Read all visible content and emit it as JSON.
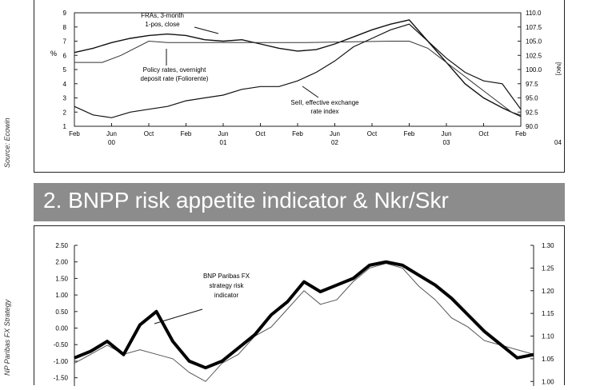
{
  "source_label": "Source: Ecowin",
  "source_label_2": "NP Paribas FX Strategy",
  "panel2_title": "2. BNPP risk appetite indicator & Nkr/Skr",
  "chart_data": [
    {
      "type": "line",
      "y_left_label": "%",
      "y_right_label": "[NKr]",
      "y_left_ticks": [
        "9",
        "8",
        "7",
        "6",
        "5",
        "4",
        "3",
        "2",
        "1"
      ],
      "y_right_ticks": [
        "110.0",
        "107.5",
        "105.0",
        "102.5",
        "100.0",
        "97.5",
        "95.0",
        "92.5",
        "90.0"
      ],
      "x_month_labels": [
        "Feb",
        "Jun",
        "Oct",
        "Feb",
        "Jun",
        "Oct",
        "Feb",
        "Jun",
        "Oct",
        "Feb",
        "Jun",
        "Oct",
        "Feb"
      ],
      "x_year_labels": [
        "00",
        "01",
        "02",
        "03",
        "04"
      ],
      "ylim_left": [
        1,
        9
      ],
      "ylim_right": [
        90,
        110
      ],
      "annotations": {
        "fra": [
          "FRAs, 3-month",
          "1-pos, close"
        ],
        "policy": [
          "Policy rates, overnight",
          "deposit rate (Foliorente)"
        ],
        "sek": [
          "SeII, effective exchange",
          "rate index"
        ]
      },
      "series": [
        {
          "name": "FRAs, 3-month 1-pos, close",
          "x": [
            0,
            2,
            4,
            6,
            8,
            10,
            12,
            14,
            16,
            18,
            20,
            22,
            24,
            26,
            28,
            30,
            32,
            34,
            36,
            38,
            40,
            42,
            44,
            46,
            48
          ],
          "y": [
            6.2,
            6.5,
            6.9,
            7.2,
            7.4,
            7.5,
            7.4,
            7.1,
            7.0,
            7.1,
            6.8,
            6.5,
            6.3,
            6.4,
            6.8,
            7.3,
            7.8,
            8.2,
            8.5,
            7.0,
            5.5,
            4.0,
            3.0,
            2.3,
            1.7
          ]
        },
        {
          "name": "Policy rates, overnight deposit rate (Foliorente)",
          "x": [
            0,
            3,
            5,
            8,
            10,
            22,
            25,
            34,
            36,
            38,
            39,
            40,
            41,
            42,
            43,
            44,
            45,
            46,
            47,
            48
          ],
          "y": [
            5.5,
            5.5,
            6.0,
            7.0,
            6.9,
            6.9,
            6.9,
            7.0,
            7.0,
            6.5,
            6.0,
            5.5,
            5.0,
            4.5,
            4.0,
            3.5,
            3.0,
            2.5,
            2.0,
            1.8
          ]
        },
        {
          "name": "SeII, effective exchange rate index",
          "x": [
            0,
            2,
            4,
            6,
            8,
            10,
            12,
            14,
            16,
            18,
            20,
            22,
            24,
            26,
            28,
            30,
            32,
            34,
            36,
            38,
            40,
            42,
            44,
            46,
            48
          ],
          "y": [
            93.5,
            92.0,
            91.5,
            92.5,
            93.0,
            93.5,
            94.5,
            95.0,
            95.5,
            96.5,
            97.0,
            97.0,
            98.0,
            99.5,
            101.5,
            104.0,
            105.5,
            107.0,
            108.0,
            105.0,
            102.0,
            99.5,
            98.0,
            97.5,
            93.0
          ]
        }
      ]
    },
    {
      "type": "line",
      "y_left_ticks": [
        "2.50",
        "2.00",
        "1.50",
        "1.00",
        "0.50",
        "0.00",
        "-0.50",
        "-1.00",
        "-1.50"
      ],
      "y_right_ticks": [
        "1.30",
        "1.25",
        "1.20",
        "1.15",
        "1.10",
        "1.05",
        "1.00"
      ],
      "ylim_left": [
        -1.75,
        2.5
      ],
      "ylim_right": [
        0.99,
        1.3
      ],
      "annotations": {
        "risk": [
          "BNP Paribas FX",
          "strategy risk",
          "indicator"
        ]
      },
      "series": [
        {
          "name": "BNP Paribas FX strategy risk indicator",
          "x": [
            0,
            3,
            6,
            9,
            12,
            15,
            18,
            21,
            24,
            27,
            30,
            33,
            36,
            39,
            42,
            45,
            48,
            51,
            54,
            57,
            60,
            63,
            66,
            69,
            72,
            75,
            78,
            81,
            84
          ],
          "y": [
            -0.9,
            -0.7,
            -0.4,
            -0.8,
            0.1,
            0.5,
            -0.4,
            -1.0,
            -1.2,
            -1.0,
            -0.6,
            -0.2,
            0.4,
            0.8,
            1.4,
            1.1,
            1.3,
            1.5,
            1.9,
            2.0,
            1.9,
            1.6,
            1.3,
            0.9,
            0.4,
            -0.1,
            -0.5,
            -0.9,
            -0.8
          ]
        },
        {
          "name": "Nkr/Skr",
          "x": [
            0,
            3,
            6,
            9,
            12,
            15,
            18,
            21,
            24,
            27,
            30,
            33,
            36,
            39,
            42,
            45,
            48,
            51,
            54,
            57,
            60,
            63,
            66,
            69,
            72,
            75,
            78,
            81,
            84
          ],
          "y": [
            1.04,
            1.06,
            1.08,
            1.06,
            1.07,
            1.06,
            1.05,
            1.02,
            1.0,
            1.04,
            1.06,
            1.1,
            1.12,
            1.16,
            1.2,
            1.17,
            1.18,
            1.22,
            1.25,
            1.26,
            1.25,
            1.21,
            1.18,
            1.14,
            1.12,
            1.09,
            1.08,
            1.07,
            1.06
          ]
        }
      ]
    }
  ]
}
